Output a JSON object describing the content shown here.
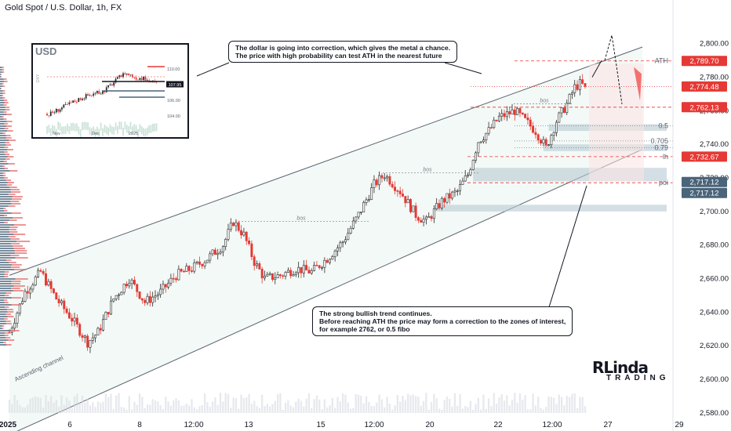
{
  "header": {
    "title": "Gold Spot / U.S. Dollar, 1h, FX"
  },
  "annotations": {
    "top_note": [
      "The dollar is going into correction, which gives the metal a chance.",
      "The price with high probability can test ATH in the nearest future"
    ],
    "bottom_note": [
      "The strong bullish trend continues.",
      "Before reaching ATH the price may form a correction to the zones of interest,",
      "for example 2762, or 0.5 fibo"
    ],
    "channel_label": "Ascending channel",
    "bos_labels": [
      "bos",
      "bos",
      "bos"
    ]
  },
  "inset": {
    "ticker": "USD",
    "y_ticks": [
      "110.00",
      "108.00",
      "106.00",
      "104.00"
    ],
    "x_ticks": [
      "Nov",
      "Dec",
      "2025"
    ],
    "side_label": "DXY",
    "price_tag": "107.95"
  },
  "logo": {
    "main": "RLinda",
    "sub": "TRADING"
  },
  "colors": {
    "up": "#2a2a2a",
    "down": "#e53935",
    "channel_fill": "#eef6f2",
    "zone": "#b7cad4",
    "axis_text": "#131722",
    "ath_tag": "#e53935",
    "poi_tag": "#4a6479",
    "price_tag": "#e53935"
  },
  "chart_data": {
    "type": "candlestick",
    "title": "Gold Spot / U.S. Dollar, 1h, FX",
    "xlabel": "",
    "ylabel": "",
    "ylim": [
      2572,
      2826
    ],
    "y_ticks": [
      2580,
      2600,
      2620,
      2640,
      2660,
      2680,
      2700,
      2720,
      2740,
      2760,
      2780,
      2800
    ],
    "y_tick_labels": [
      "2,580.00",
      "2,600.00",
      "2,620.00",
      "2,640.00",
      "2,660.00",
      "2,680.00",
      "2,700.00",
      "2,720.00",
      "2,740.00",
      "2,760.00",
      "2,780.00",
      "2,800.00"
    ],
    "x_ticks": [
      "2025",
      "6",
      "8",
      "12:00",
      "13",
      "15",
      "12:00",
      "20",
      "22",
      "12:00",
      "27",
      "29"
    ],
    "grid": false,
    "path_anchors": [
      {
        "i": 0,
        "p": 2628
      },
      {
        "i": 6,
        "p": 2652
      },
      {
        "i": 12,
        "p": 2664
      },
      {
        "i": 18,
        "p": 2648
      },
      {
        "i": 24,
        "p": 2636
      },
      {
        "i": 30,
        "p": 2622
      },
      {
        "i": 34,
        "p": 2628
      },
      {
        "i": 40,
        "p": 2648
      },
      {
        "i": 46,
        "p": 2660
      },
      {
        "i": 52,
        "p": 2646
      },
      {
        "i": 58,
        "p": 2652
      },
      {
        "i": 64,
        "p": 2662
      },
      {
        "i": 70,
        "p": 2666
      },
      {
        "i": 76,
        "p": 2672
      },
      {
        "i": 82,
        "p": 2680
      },
      {
        "i": 86,
        "p": 2694
      },
      {
        "i": 90,
        "p": 2686
      },
      {
        "i": 94,
        "p": 2670
      },
      {
        "i": 98,
        "p": 2660
      },
      {
        "i": 104,
        "p": 2662
      },
      {
        "i": 110,
        "p": 2666
      },
      {
        "i": 116,
        "p": 2664
      },
      {
        "i": 122,
        "p": 2672
      },
      {
        "i": 128,
        "p": 2682
      },
      {
        "i": 134,
        "p": 2698
      },
      {
        "i": 140,
        "p": 2716
      },
      {
        "i": 144,
        "p": 2722
      },
      {
        "i": 150,
        "p": 2712
      },
      {
        "i": 156,
        "p": 2698
      },
      {
        "i": 160,
        "p": 2694
      },
      {
        "i": 166,
        "p": 2706
      },
      {
        "i": 172,
        "p": 2712
      },
      {
        "i": 176,
        "p": 2722
      },
      {
        "i": 180,
        "p": 2742
      },
      {
        "i": 184,
        "p": 2748
      },
      {
        "i": 188,
        "p": 2756
      },
      {
        "i": 194,
        "p": 2760
      },
      {
        "i": 198,
        "p": 2754
      },
      {
        "i": 202,
        "p": 2748
      },
      {
        "i": 206,
        "p": 2738
      },
      {
        "i": 210,
        "p": 2754
      },
      {
        "i": 214,
        "p": 2764
      },
      {
        "i": 217,
        "p": 2774
      },
      {
        "i": 219,
        "p": 2776
      },
      {
        "i": 221,
        "p": 2774.48
      }
    ],
    "last_price": 2774.48,
    "levels": [
      {
        "name": "ATH",
        "value": 2789.7,
        "label": "2,789.70",
        "style": "dashed-red"
      },
      {
        "name": "",
        "value": 2774.48,
        "label": "2,774.48",
        "style": "dotted-red"
      },
      {
        "name": "",
        "value": 2762.13,
        "label": "2,762.13",
        "style": "dashed-red"
      },
      {
        "name": "0.5",
        "value": 2751,
        "label": "",
        "style": "dotted-grey"
      },
      {
        "name": "0.705",
        "value": 2742,
        "label": "",
        "style": "dotted-grey"
      },
      {
        "name": "0.79",
        "value": 2738,
        "label": "",
        "style": "dotted-grey"
      },
      {
        "name": "lh",
        "value": 2732.67,
        "label": "2,732.67",
        "style": "dashed-red"
      },
      {
        "name": "poi",
        "value": 2717.12,
        "label": "2,717.12",
        "style": "dashed-red"
      }
    ],
    "poi_tag": "2,717.12",
    "zones": [
      {
        "from": 2748,
        "to": 2752,
        "start_i": 207
      },
      {
        "from": 2736,
        "to": 2740,
        "start_i": 205
      },
      {
        "from": 2718,
        "to": 2726,
        "start_i": 178
      },
      {
        "from": 2700,
        "to": 2704,
        "start_i": 163
      }
    ],
    "channel": {
      "upper": [
        {
          "i": 0,
          "p": 2662
        },
        {
          "i": 243,
          "p": 2798
        }
      ],
      "lower": [
        {
          "i": 0,
          "p": 2567
        },
        {
          "i": 243,
          "p": 2737
        }
      ]
    }
  }
}
